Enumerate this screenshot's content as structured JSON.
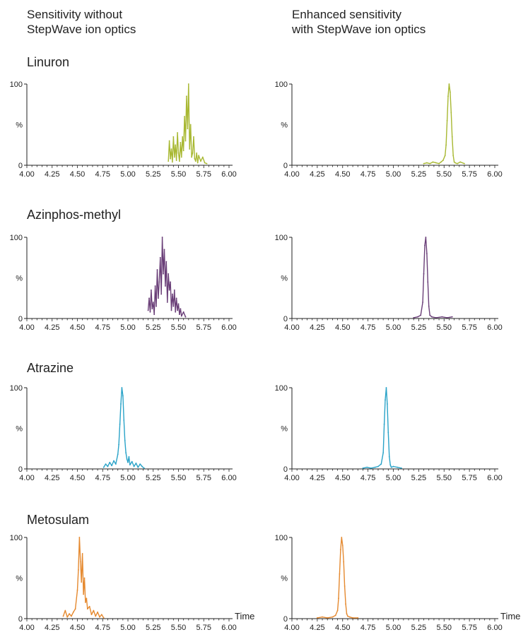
{
  "header": {
    "left_title": "Sensitivity without\nStepWave ion optics",
    "right_title": "Enhanced sensitivity\nwith StepWave ion optics"
  },
  "compounds": [
    "Linuron",
    "Azinphos-methyl",
    "Atrazine",
    "Metosulam"
  ],
  "colors": {
    "Linuron": "#a8b832",
    "Azinphos-methyl": "#6a3f78",
    "Atrazine": "#2aa3c8",
    "Metosulam": "#e5892f"
  },
  "axis": {
    "xticks": [
      "4.00",
      "4.25",
      "4.50",
      "4.75",
      "5.00",
      "5.25",
      "5.50",
      "5.75",
      "6.00"
    ],
    "yticks": [
      "0",
      "%",
      "100"
    ],
    "time_label": "Time"
  },
  "chart_data": [
    {
      "type": "line",
      "compound": "Linuron",
      "panel": "without StepWave",
      "xlim": [
        4.0,
        6.0
      ],
      "ylim": [
        0,
        100
      ],
      "x": [
        5.4,
        5.41,
        5.42,
        5.43,
        5.44,
        5.45,
        5.46,
        5.47,
        5.48,
        5.49,
        5.5,
        5.51,
        5.52,
        5.53,
        5.54,
        5.55,
        5.56,
        5.57,
        5.58,
        5.59,
        5.6,
        5.61,
        5.62,
        5.63,
        5.64,
        5.65,
        5.66,
        5.67,
        5.68,
        5.69,
        5.7,
        5.72,
        5.74,
        5.76,
        5.78
      ],
      "y": [
        5,
        30,
        8,
        20,
        4,
        35,
        10,
        25,
        6,
        40,
        15,
        5,
        28,
        10,
        35,
        18,
        60,
        30,
        85,
        45,
        100,
        20,
        50,
        10,
        15,
        35,
        8,
        5,
        15,
        3,
        12,
        5,
        10,
        3,
        2
      ]
    },
    {
      "type": "line",
      "compound": "Linuron",
      "panel": "with StepWave",
      "xlim": [
        4.0,
        6.0
      ],
      "ylim": [
        0,
        100
      ],
      "x": [
        5.3,
        5.33,
        5.36,
        5.39,
        5.42,
        5.45,
        5.47,
        5.49,
        5.51,
        5.52,
        5.53,
        5.54,
        5.55,
        5.56,
        5.57,
        5.58,
        5.59,
        5.6,
        5.61,
        5.63,
        5.66,
        5.7
      ],
      "y": [
        2,
        3,
        2,
        4,
        3,
        2,
        4,
        6,
        12,
        25,
        55,
        85,
        100,
        90,
        65,
        35,
        12,
        4,
        3,
        2,
        4,
        2
      ]
    },
    {
      "type": "line",
      "compound": "Azinphos-methyl",
      "panel": "without StepWave",
      "xlim": [
        4.0,
        6.0
      ],
      "ylim": [
        0,
        100
      ],
      "x": [
        5.2,
        5.21,
        5.22,
        5.23,
        5.24,
        5.25,
        5.26,
        5.27,
        5.28,
        5.29,
        5.3,
        5.31,
        5.32,
        5.33,
        5.34,
        5.35,
        5.36,
        5.37,
        5.38,
        5.39,
        5.4,
        5.41,
        5.42,
        5.43,
        5.44,
        5.45,
        5.46,
        5.47,
        5.48,
        5.49,
        5.5,
        5.51,
        5.52,
        5.53,
        5.55,
        5.57
      ],
      "y": [
        10,
        25,
        8,
        35,
        12,
        20,
        5,
        40,
        15,
        60,
        25,
        45,
        75,
        30,
        100,
        55,
        85,
        40,
        70,
        20,
        55,
        35,
        45,
        10,
        30,
        15,
        35,
        8,
        25,
        10,
        18,
        5,
        12,
        3,
        8,
        2
      ]
    },
    {
      "type": "line",
      "compound": "Azinphos-methyl",
      "panel": "with StepWave",
      "xlim": [
        4.0,
        6.0
      ],
      "ylim": [
        0,
        100
      ],
      "x": [
        5.2,
        5.24,
        5.27,
        5.29,
        5.3,
        5.31,
        5.32,
        5.33,
        5.34,
        5.35,
        5.36,
        5.38,
        5.42,
        5.48,
        5.53,
        5.58
      ],
      "y": [
        1,
        2,
        4,
        20,
        55,
        90,
        100,
        80,
        45,
        15,
        4,
        2,
        1,
        2,
        1,
        2
      ]
    },
    {
      "type": "line",
      "compound": "Atrazine",
      "panel": "without StepWave",
      "xlim": [
        4.0,
        6.0
      ],
      "ylim": [
        0,
        100
      ],
      "x": [
        4.76,
        4.78,
        4.8,
        4.82,
        4.84,
        4.86,
        4.88,
        4.9,
        4.91,
        4.92,
        4.93,
        4.94,
        4.95,
        4.96,
        4.97,
        4.98,
        4.99,
        5.0,
        5.01,
        5.02,
        5.04,
        5.06,
        5.08,
        5.1,
        5.12,
        5.14,
        5.16
      ],
      "y": [
        2,
        6,
        3,
        8,
        4,
        10,
        6,
        18,
        30,
        55,
        80,
        100,
        90,
        60,
        35,
        20,
        12,
        8,
        15,
        5,
        9,
        3,
        7,
        2,
        6,
        3,
        1
      ]
    },
    {
      "type": "line",
      "compound": "Atrazine",
      "panel": "with StepWave",
      "xlim": [
        4.0,
        6.0
      ],
      "ylim": [
        0,
        100
      ],
      "x": [
        4.7,
        4.74,
        4.78,
        4.82,
        4.85,
        4.88,
        4.9,
        4.91,
        4.92,
        4.93,
        4.94,
        4.95,
        4.96,
        4.97,
        4.98,
        5.0,
        5.04,
        5.08
      ],
      "y": [
        1,
        2,
        1,
        2,
        3,
        6,
        20,
        55,
        85,
        100,
        80,
        45,
        15,
        5,
        2,
        3,
        2,
        1
      ]
    },
    {
      "type": "line",
      "compound": "Metosulam",
      "panel": "without StepWave",
      "xlim": [
        4.0,
        6.0
      ],
      "ylim": [
        0,
        100
      ],
      "x": [
        4.36,
        4.38,
        4.4,
        4.42,
        4.44,
        4.46,
        4.48,
        4.5,
        4.51,
        4.52,
        4.53,
        4.54,
        4.55,
        4.56,
        4.57,
        4.58,
        4.59,
        4.6,
        4.62,
        4.64,
        4.66,
        4.68,
        4.7,
        4.72,
        4.74,
        4.76
      ],
      "y": [
        3,
        10,
        2,
        6,
        3,
        8,
        12,
        35,
        60,
        100,
        70,
        45,
        80,
        30,
        50,
        20,
        25,
        12,
        15,
        5,
        10,
        3,
        8,
        2,
        5,
        1
      ]
    },
    {
      "type": "line",
      "compound": "Metosulam",
      "panel": "with StepWave",
      "xlim": [
        4.0,
        6.0
      ],
      "ylim": [
        0,
        100
      ],
      "x": [
        4.25,
        4.3,
        4.35,
        4.4,
        4.43,
        4.45,
        4.46,
        4.47,
        4.48,
        4.49,
        4.5,
        4.51,
        4.52,
        4.53,
        4.54,
        4.55,
        4.57,
        4.6,
        4.65
      ],
      "y": [
        1,
        2,
        1,
        2,
        4,
        10,
        25,
        55,
        85,
        100,
        90,
        70,
        40,
        18,
        6,
        3,
        2,
        1,
        1
      ]
    }
  ]
}
